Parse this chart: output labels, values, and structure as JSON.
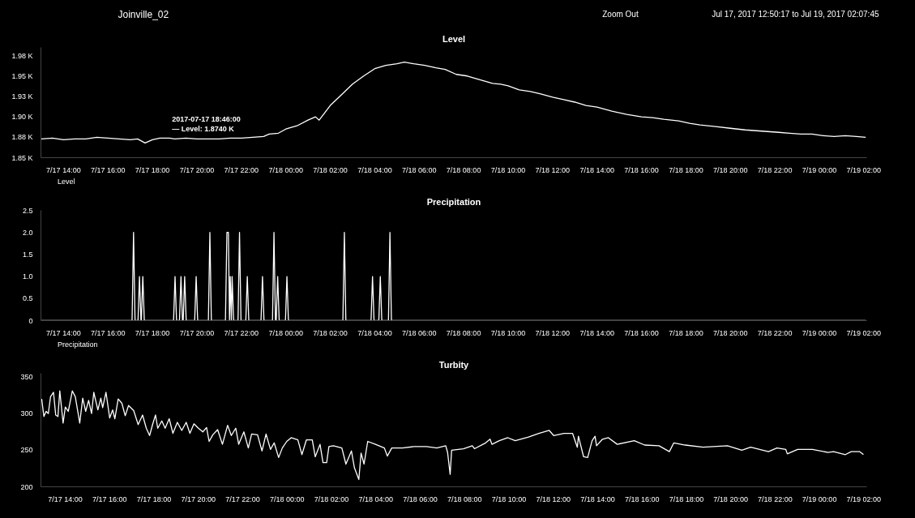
{
  "chart_data": [
    {
      "type": "other",
      "title": "Joinville_02",
      "annotations": [
        "Zoom Out",
        "Jul 17, 2017 12:50:17 to Jul 19, 2017 02:07:45"
      ]
    },
    {
      "type": "line",
      "title": "Level",
      "legend": "bottom left",
      "xlim": [
        "2017-07-17T12:59",
        "2017-07-19T02:08"
      ],
      "ylim": [
        1850,
        1985
      ],
      "xticks": [
        {
          "value": "2017-07-17T14:00",
          "label": "7/17 14:00"
        },
        {
          "value": "2017-07-17T16:00",
          "label": "7/17 16:00"
        },
        {
          "value": "2017-07-17T18:00",
          "label": "7/17 18:00"
        },
        {
          "value": "2017-07-17T20:00",
          "label": "7/17 20:00"
        },
        {
          "value": "2017-07-17T22:00",
          "label": "7/17 22:00"
        },
        {
          "value": "2017-07-18T00:00",
          "label": "7/18 00:00"
        },
        {
          "value": "2017-07-18T02:00",
          "label": "7/18 02:00"
        },
        {
          "value": "2017-07-18T04:00",
          "label": "7/18 04:00"
        },
        {
          "value": "2017-07-18T06:00",
          "label": "7/18 06:00"
        },
        {
          "value": "2017-07-18T08:00",
          "label": "7/18 08:00"
        },
        {
          "value": "2017-07-18T10:00",
          "label": "7/18 10:00"
        },
        {
          "value": "2017-07-18T12:00",
          "label": "7/18 12:00"
        },
        {
          "value": "2017-07-18T14:00",
          "label": "7/18 14:00"
        },
        {
          "value": "2017-07-18T16:00",
          "label": "7/18 16:00"
        },
        {
          "value": "2017-07-18T18:00",
          "label": "7/18 18:00"
        },
        {
          "value": "2017-07-18T20:00",
          "label": "7/18 20:00"
        },
        {
          "value": "2017-07-18T22:00",
          "label": "7/18 22:00"
        },
        {
          "value": "2017-07-19T00:00",
          "label": "7/19 00:00"
        },
        {
          "value": "2017-07-19T02:00",
          "label": "7/19 02:00"
        }
      ],
      "yticks": [
        {
          "value": 1850,
          "label": "1.85 K"
        },
        {
          "value": 1875,
          "label": "1.88 K"
        },
        {
          "value": 1900,
          "label": "1.90 K"
        },
        {
          "value": 1925,
          "label": "1.93 K"
        },
        {
          "value": 1950,
          "label": "1.95 K"
        },
        {
          "value": 1975,
          "label": "1.98 K"
        }
      ],
      "annotations": [
        {
          "text": "2017-07-17 18:46:00\n— Level:  1.8740 K",
          "x": "2017-07-17T18:46",
          "y": 1874
        }
      ],
      "series": [
        {
          "name": "Level",
          "color": "#ffffff",
          "x": [
            "2017-07-17T13:00",
            "2017-07-17T13:30",
            "2017-07-17T14:00",
            "2017-07-17T14:30",
            "2017-07-17T15:00",
            "2017-07-17T15:30",
            "2017-07-17T16:00",
            "2017-07-17T16:30",
            "2017-07-17T17:00",
            "2017-07-17T17:20",
            "2017-07-17T17:40",
            "2017-07-17T18:00",
            "2017-07-17T18:20",
            "2017-07-17T18:46",
            "2017-07-17T19:00",
            "2017-07-17T19:30",
            "2017-07-17T20:00",
            "2017-07-17T20:30",
            "2017-07-17T21:00",
            "2017-07-17T21:30",
            "2017-07-17T22:00",
            "2017-07-17T22:30",
            "2017-07-17T23:00",
            "2017-07-17T23:15",
            "2017-07-17T23:40",
            "2017-07-18T00:00",
            "2017-07-18T00:30",
            "2017-07-18T01:00",
            "2017-07-18T01:20",
            "2017-07-18T01:30",
            "2017-07-18T01:45",
            "2017-07-18T02:00",
            "2017-07-18T02:30",
            "2017-07-18T03:00",
            "2017-07-18T03:30",
            "2017-07-18T04:00",
            "2017-07-18T04:30",
            "2017-07-18T05:00",
            "2017-07-18T05:20",
            "2017-07-18T05:45",
            "2017-07-18T06:15",
            "2017-07-18T06:45",
            "2017-07-18T07:10",
            "2017-07-18T07:40",
            "2017-07-18T08:10",
            "2017-07-18T08:40",
            "2017-07-18T09:18",
            "2017-07-18T09:40",
            "2017-07-18T10:00",
            "2017-07-18T10:30",
            "2017-07-18T11:00",
            "2017-07-18T11:28",
            "2017-07-18T12:00",
            "2017-07-18T12:30",
            "2017-07-18T13:00",
            "2017-07-18T13:30",
            "2017-07-18T14:00",
            "2017-07-18T14:40",
            "2017-07-18T15:20",
            "2017-07-18T16:00",
            "2017-07-18T16:30",
            "2017-07-18T17:00",
            "2017-07-18T17:40",
            "2017-07-18T18:10",
            "2017-07-18T18:38",
            "2017-07-18T19:20",
            "2017-07-18T20:00",
            "2017-07-18T20:40",
            "2017-07-18T21:10",
            "2017-07-18T21:40",
            "2017-07-18T22:10",
            "2017-07-18T22:40",
            "2017-07-18T23:10",
            "2017-07-18T23:40",
            "2017-07-19T00:10",
            "2017-07-19T00:40",
            "2017-07-19T01:10",
            "2017-07-19T01:40",
            "2017-07-19T02:05"
          ],
          "values": [
            1873,
            1874,
            1872,
            1873,
            1873,
            1875,
            1874,
            1873,
            1872,
            1873,
            1868,
            1872,
            1874,
            1874,
            1873,
            1874,
            1873,
            1873,
            1873,
            1874,
            1874,
            1875,
            1876,
            1879,
            1880,
            1885,
            1889,
            1896,
            1900,
            1896,
            1905,
            1914,
            1927,
            1940,
            1950,
            1959,
            1963,
            1965,
            1967,
            1965,
            1963,
            1960,
            1958,
            1952,
            1950,
            1946,
            1941,
            1940,
            1938,
            1933,
            1931,
            1928,
            1924,
            1921,
            1918,
            1914,
            1912,
            1907,
            1903,
            1900,
            1899,
            1897,
            1895,
            1892,
            1890,
            1888,
            1886,
            1884,
            1883,
            1882,
            1881,
            1880,
            1879,
            1879,
            1877,
            1876,
            1877,
            1876,
            1875
          ]
        }
      ]
    },
    {
      "type": "line",
      "title": "Precipitation",
      "legend": "bottom left",
      "xlim": [
        "2017-07-17T12:59",
        "2017-07-19T02:08"
      ],
      "ylim": [
        0,
        2.5
      ],
      "xticks": [
        {
          "value": "2017-07-17T14:00",
          "label": "7/17 14:00"
        },
        {
          "value": "2017-07-17T16:00",
          "label": "7/17 16:00"
        },
        {
          "value": "2017-07-17T18:00",
          "label": "7/17 18:00"
        },
        {
          "value": "2017-07-17T20:00",
          "label": "7/17 20:00"
        },
        {
          "value": "2017-07-17T22:00",
          "label": "7/17 22:00"
        },
        {
          "value": "2017-07-18T00:00",
          "label": "7/18 00:00"
        },
        {
          "value": "2017-07-18T02:00",
          "label": "7/18 02:00"
        },
        {
          "value": "2017-07-18T04:00",
          "label": "7/18 04:00"
        },
        {
          "value": "2017-07-18T06:00",
          "label": "7/18 06:00"
        },
        {
          "value": "2017-07-18T08:00",
          "label": "7/18 08:00"
        },
        {
          "value": "2017-07-18T10:00",
          "label": "7/18 10:00"
        },
        {
          "value": "2017-07-18T12:00",
          "label": "7/18 12:00"
        },
        {
          "value": "2017-07-18T14:00",
          "label": "7/18 14:00"
        },
        {
          "value": "2017-07-18T16:00",
          "label": "7/18 16:00"
        },
        {
          "value": "2017-07-18T18:00",
          "label": "7/18 18:00"
        },
        {
          "value": "2017-07-18T20:00",
          "label": "7/18 20:00"
        },
        {
          "value": "2017-07-18T22:00",
          "label": "7/18 22:00"
        },
        {
          "value": "2017-07-19T00:00",
          "label": "7/19 00:00"
        },
        {
          "value": "2017-07-19T02:00",
          "label": "7/19 02:00"
        }
      ],
      "yticks": [
        0,
        0.5,
        {
          "value": 1,
          "label": "1.0"
        },
        1.5,
        {
          "value": 2,
          "label": "2.0"
        },
        2.5
      ],
      "series": [
        {
          "name": "Precipitation",
          "color": "#ffffff",
          "x": [
            "2017-07-17T13:00",
            "2017-07-17T17:05",
            "2017-07-17T17:09",
            "2017-07-17T17:13",
            "2017-07-17T17:21",
            "2017-07-17T17:25",
            "2017-07-17T17:29",
            "2017-07-17T17:30",
            "2017-07-17T17:34",
            "2017-07-17T17:38",
            "2017-07-17T18:57",
            "2017-07-17T19:01",
            "2017-07-17T19:05",
            "2017-07-17T19:13",
            "2017-07-17T19:17",
            "2017-07-17T19:21",
            "2017-07-17T19:23",
            "2017-07-17T19:27",
            "2017-07-17T19:31",
            "2017-07-17T19:54",
            "2017-07-17T19:58",
            "2017-07-17T20:02",
            "2017-07-17T20:31",
            "2017-07-17T20:35",
            "2017-07-17T20:39",
            "2017-07-17T21:17",
            "2017-07-17T21:21",
            "2017-07-17T21:25",
            "2017-07-17T21:28",
            "2017-07-17T21:30",
            "2017-07-17T21:33",
            "2017-07-17T21:35",
            "2017-07-17T21:39",
            "2017-07-17T21:51",
            "2017-07-17T21:55",
            "2017-07-17T21:59",
            "2017-07-17T22:12",
            "2017-07-17T22:16",
            "2017-07-17T22:20",
            "2017-07-17T22:53",
            "2017-07-17T22:57",
            "2017-07-17T23:01",
            "2017-07-17T23:24",
            "2017-07-17T23:28",
            "2017-07-17T23:32",
            "2017-07-17T23:34",
            "2017-07-17T23:38",
            "2017-07-17T23:42",
            "2017-07-17T23:59",
            "2017-07-18T00:03",
            "2017-07-18T00:07",
            "2017-07-18T02:34",
            "2017-07-18T02:38",
            "2017-07-18T02:42",
            "2017-07-18T03:50",
            "2017-07-18T03:54",
            "2017-07-18T03:58",
            "2017-07-18T04:11",
            "2017-07-18T04:15",
            "2017-07-18T04:19",
            "2017-07-18T04:37",
            "2017-07-18T04:41",
            "2017-07-18T04:45",
            "2017-07-19T02:05"
          ],
          "values": [
            0,
            0,
            2,
            0,
            0,
            1,
            0,
            0,
            1,
            0,
            0,
            1,
            0,
            0,
            1,
            0,
            0,
            1,
            0,
            0,
            1,
            0,
            0,
            2,
            0,
            0,
            2,
            2,
            0,
            1,
            0,
            1,
            0,
            0,
            2,
            0,
            0,
            1,
            0,
            0,
            1,
            0,
            0,
            2,
            0,
            0,
            1,
            0,
            0,
            1,
            0,
            0,
            2,
            0,
            0,
            1,
            0,
            0,
            1,
            0,
            0,
            2,
            0,
            0
          ]
        }
      ]
    },
    {
      "type": "line",
      "title": "Turbity",
      "xlim": [
        "2017-07-17T12:54",
        "2017-07-19T02:08"
      ],
      "ylim": [
        200,
        355
      ],
      "xticks": [
        {
          "value": "2017-07-17T14:00",
          "label": "7/17 14:00"
        },
        {
          "value": "2017-07-17T16:00",
          "label": "7/17 16:00"
        },
        {
          "value": "2017-07-17T18:00",
          "label": "7/17 18:00"
        },
        {
          "value": "2017-07-17T20:00",
          "label": "7/17 20:00"
        },
        {
          "value": "2017-07-17T22:00",
          "label": "7/17 22:00"
        },
        {
          "value": "2017-07-18T00:00",
          "label": "7/18 00:00"
        },
        {
          "value": "2017-07-18T02:00",
          "label": "7/18 02:00"
        },
        {
          "value": "2017-07-18T04:00",
          "label": "7/18 04:00"
        },
        {
          "value": "2017-07-18T06:00",
          "label": "7/18 06:00"
        },
        {
          "value": "2017-07-18T08:00",
          "label": "7/18 08:00"
        },
        {
          "value": "2017-07-18T10:00",
          "label": "7/18 10:00"
        },
        {
          "value": "2017-07-18T12:00",
          "label": "7/18 12:00"
        },
        {
          "value": "2017-07-18T14:00",
          "label": "7/18 14:00"
        },
        {
          "value": "2017-07-18T16:00",
          "label": "7/18 16:00"
        },
        {
          "value": "2017-07-18T18:00",
          "label": "7/18 18:00"
        },
        {
          "value": "2017-07-18T20:00",
          "label": "7/18 20:00"
        },
        {
          "value": "2017-07-18T22:00",
          "label": "7/18 22:00"
        },
        {
          "value": "2017-07-19T00:00",
          "label": "7/19 00:00"
        },
        {
          "value": "2017-07-19T02:00",
          "label": "7/19 02:00"
        }
      ],
      "yticks": [
        200,
        250,
        300,
        350
      ],
      "series": [
        {
          "color": "#ffffff",
          "x": [
            "2017-07-17T12:56",
            "2017-07-17T13:02",
            "2017-07-17T13:08",
            "2017-07-17T13:14",
            "2017-07-17T13:20",
            "2017-07-17T13:28",
            "2017-07-17T13:34",
            "2017-07-17T13:40",
            "2017-07-17T13:45",
            "2017-07-17T13:54",
            "2017-07-17T14:00",
            "2017-07-17T14:08",
            "2017-07-17T14:19",
            "2017-07-17T14:27",
            "2017-07-17T14:39",
            "2017-07-17T14:47",
            "2017-07-17T14:55",
            "2017-07-17T15:03",
            "2017-07-17T15:11",
            "2017-07-17T15:17",
            "2017-07-17T15:28",
            "2017-07-17T15:36",
            "2017-07-17T15:41",
            "2017-07-17T15:50",
            "2017-07-17T16:00",
            "2017-07-17T16:08",
            "2017-07-17T16:14",
            "2017-07-17T16:23",
            "2017-07-17T16:33",
            "2017-07-17T16:42",
            "2017-07-17T16:51",
            "2017-07-17T17:05",
            "2017-07-17T17:17",
            "2017-07-17T17:29",
            "2017-07-17T17:39",
            "2017-07-17T17:48",
            "2017-07-17T17:56",
            "2017-07-17T18:04",
            "2017-07-17T18:10",
            "2017-07-17T18:21",
            "2017-07-17T18:30",
            "2017-07-17T18:41",
            "2017-07-17T18:51",
            "2017-07-17T19:03",
            "2017-07-17T19:15",
            "2017-07-17T19:27",
            "2017-07-17T19:37",
            "2017-07-17T19:48",
            "2017-07-17T20:00",
            "2017-07-17T20:12",
            "2017-07-17T20:22",
            "2017-07-17T20:29",
            "2017-07-17T20:39",
            "2017-07-17T20:52",
            "2017-07-17T21:05",
            "2017-07-17T21:19",
            "2017-07-17T21:29",
            "2017-07-17T21:41",
            "2017-07-17T21:49",
            "2017-07-17T22:03",
            "2017-07-17T22:15",
            "2017-07-17T22:24",
            "2017-07-17T22:40",
            "2017-07-17T22:52",
            "2017-07-17T23:03",
            "2017-07-17T23:15",
            "2017-07-17T23:25",
            "2017-07-17T23:37",
            "2017-07-17T23:47",
            "2017-07-17T23:59",
            "2017-07-18T00:11",
            "2017-07-18T00:29",
            "2017-07-18T00:40",
            "2017-07-18T00:52",
            "2017-07-18T01:08",
            "2017-07-18T01:16",
            "2017-07-18T01:29",
            "2017-07-18T01:37",
            "2017-07-18T01:47",
            "2017-07-18T01:53",
            "2017-07-18T02:05",
            "2017-07-18T02:28",
            "2017-07-18T02:39",
            "2017-07-18T02:54",
            "2017-07-18T03:02",
            "2017-07-18T03:14",
            "2017-07-18T03:20",
            "2017-07-18T03:28",
            "2017-07-18T03:38",
            "2017-07-18T03:59",
            "2017-07-18T04:23",
            "2017-07-18T04:31",
            "2017-07-18T04:43",
            "2017-07-18T05:12",
            "2017-07-18T05:44",
            "2017-07-18T06:17",
            "2017-07-18T06:45",
            "2017-07-18T07:09",
            "2017-07-18T07:14",
            "2017-07-18T07:21",
            "2017-07-18T07:25",
            "2017-07-18T07:57",
            "2017-07-18T08:21",
            "2017-07-18T08:27",
            "2017-07-18T08:57",
            "2017-07-18T09:09",
            "2017-07-18T09:14",
            "2017-07-18T09:34",
            "2017-07-18T09:57",
            "2017-07-18T10:17",
            "2017-07-18T10:53",
            "2017-07-18T11:21",
            "2017-07-18T11:49",
            "2017-07-18T12:01",
            "2017-07-18T12:29",
            "2017-07-18T12:52",
            "2017-07-18T13:05",
            "2017-07-18T13:08",
            "2017-07-18T13:22",
            "2017-07-18T13:33",
            "2017-07-18T13:45",
            "2017-07-18T13:53",
            "2017-07-18T13:57",
            "2017-07-18T14:13",
            "2017-07-18T14:29",
            "2017-07-18T14:53",
            "2017-07-18T15:39",
            "2017-07-18T16:07",
            "2017-07-18T16:46",
            "2017-07-18T17:14",
            "2017-07-18T17:26",
            "2017-07-18T17:57",
            "2017-07-18T18:45",
            "2017-07-18T19:51",
            "2017-07-18T20:30",
            "2017-07-18T20:54",
            "2017-07-18T21:42",
            "2017-07-18T22:05",
            "2017-07-18T22:29",
            "2017-07-18T22:33",
            "2017-07-18T23:01",
            "2017-07-18T23:41",
            "2017-07-19T00:23",
            "2017-07-19T00:38",
            "2017-07-19T01:10",
            "2017-07-19T01:26",
            "2017-07-19T01:49",
            "2017-07-19T01:59"
          ],
          "values": [
            320,
            296,
            303,
            300,
            323,
            329,
            298,
            296,
            331,
            287,
            309,
            303,
            331,
            323,
            287,
            321,
            303,
            318,
            300,
            329,
            305,
            321,
            308,
            329,
            294,
            305,
            293,
            320,
            314,
            297,
            311,
            304,
            285,
            298,
            280,
            270,
            285,
            298,
            280,
            290,
            280,
            293,
            273,
            288,
            277,
            288,
            273,
            286,
            280,
            275,
            281,
            262,
            271,
            278,
            258,
            284,
            270,
            280,
            258,
            275,
            253,
            272,
            271,
            249,
            272,
            251,
            260,
            240,
            253,
            262,
            267,
            264,
            244,
            264,
            264,
            241,
            258,
            233,
            233,
            255,
            256,
            253,
            231,
            249,
            226,
            210,
            246,
            231,
            262,
            258,
            253,
            242,
            253,
            253,
            255,
            255,
            253,
            256,
            247,
            217,
            250,
            252,
            256,
            252,
            260,
            265,
            258,
            263,
            267,
            263,
            268,
            273,
            277,
            270,
            273,
            273,
            254,
            269,
            241,
            240,
            263,
            269,
            256,
            265,
            267,
            258,
            263,
            257,
            256,
            248,
            260,
            257,
            254,
            256,
            250,
            254,
            248,
            253,
            251,
            245,
            251,
            251,
            247,
            248,
            244,
            248,
            248,
            244
          ]
        }
      ]
    }
  ]
}
